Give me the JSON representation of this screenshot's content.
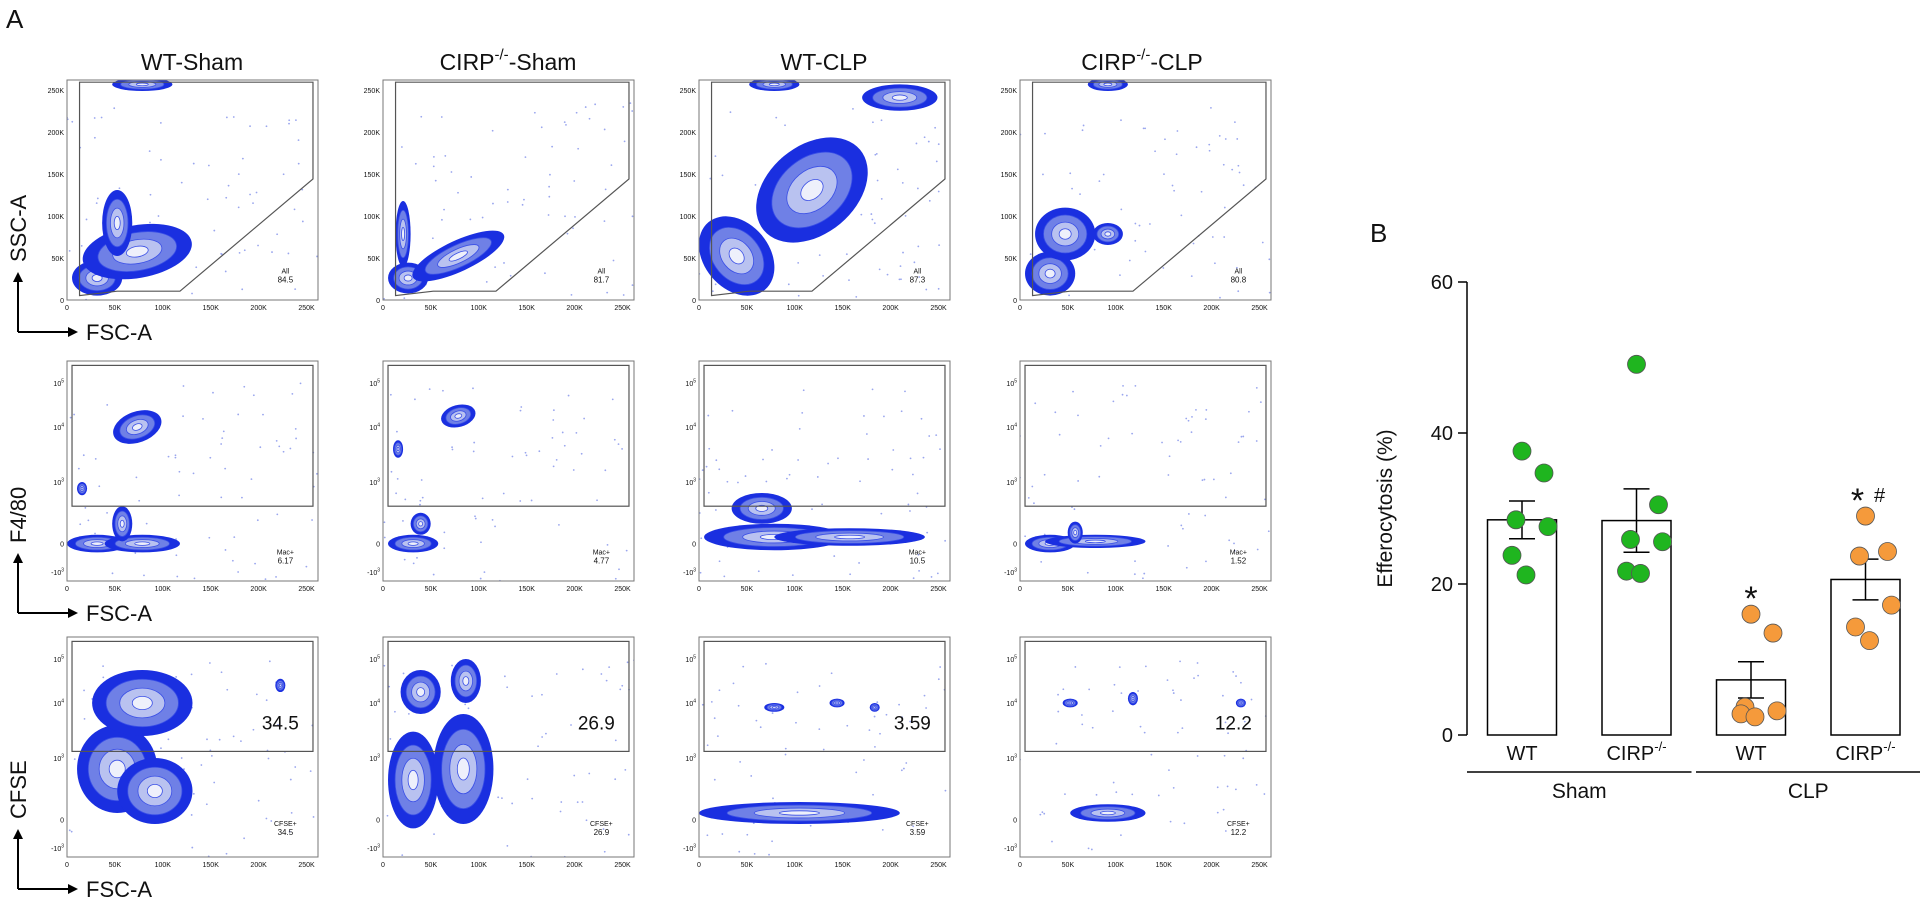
{
  "panel_a": {
    "label": "A",
    "columns": [
      {
        "base": "WT-Sham"
      },
      {
        "base": "CIRP",
        "sup": "-/-",
        "rest": "-Sham"
      },
      {
        "base": "WT-CLP"
      },
      {
        "base": "CIRP",
        "sup": "-/-",
        "rest": "-CLP"
      }
    ],
    "linear_ticks": [
      "0",
      "50K",
      "100K",
      "150K",
      "200K",
      "250K"
    ],
    "log_ticks": [
      {
        "base": "10",
        "sup": "5"
      },
      {
        "base": "10",
        "sup": "4"
      },
      {
        "base": "10",
        "sup": "3"
      },
      {
        "base": "0"
      },
      {
        "base": "-10",
        "sup": "3"
      }
    ],
    "rows": [
      {
        "y_label": "SSC-A",
        "x_label": "FSC-A",
        "gate_name": "All",
        "gate_values": [
          84.5,
          81.7,
          87.3,
          80.8
        ]
      },
      {
        "y_label": "F4/80",
        "x_label": "FSC-A",
        "gate_name": "Mac+",
        "gate_values": [
          6.17,
          4.77,
          10.5,
          1.52
        ]
      },
      {
        "y_label": "CFSE",
        "x_label": "FSC-A",
        "gate_name": "CFSE+",
        "gate_values": [
          34.5,
          26.9,
          3.59,
          12.2
        ]
      }
    ]
  },
  "chart_data": {
    "type": "bar",
    "panel_label": "B",
    "y_label": "Efferocytosis (%)",
    "ylim": [
      0,
      60
    ],
    "yticks": [
      0,
      20,
      40,
      60
    ],
    "groups": [
      {
        "label": "Sham",
        "color": "#1fb51f",
        "categories": [
          {
            "label": {
              "base": "WT"
            },
            "mean": 28.5,
            "sem": 2.5,
            "points": [
              37.6,
              34.7,
              28.5,
              27.6,
              23.8,
              21.2
            ]
          },
          {
            "label": {
              "base": "CIRP",
              "sup": "-/-"
            },
            "mean": 28.4,
            "sem": 4.2,
            "points": [
              49.1,
              30.5,
              25.9,
              25.6,
              21.7,
              21.4
            ]
          }
        ]
      },
      {
        "label": "CLP",
        "color": "#f59a3b",
        "categories": [
          {
            "label": {
              "base": "WT"
            },
            "mean": 7.3,
            "sem": 2.4,
            "points": [
              16.0,
              13.5,
              3.7,
              3.2,
              2.8,
              2.4
            ],
            "star": "*"
          },
          {
            "label": {
              "base": "CIRP",
              "sup": "-/-"
            },
            "mean": 20.6,
            "sem": 2.7,
            "points": [
              29.0,
              24.3,
              23.7,
              17.2,
              14.3,
              12.5
            ],
            "star": "*",
            "hash": "#"
          }
        ]
      }
    ]
  }
}
